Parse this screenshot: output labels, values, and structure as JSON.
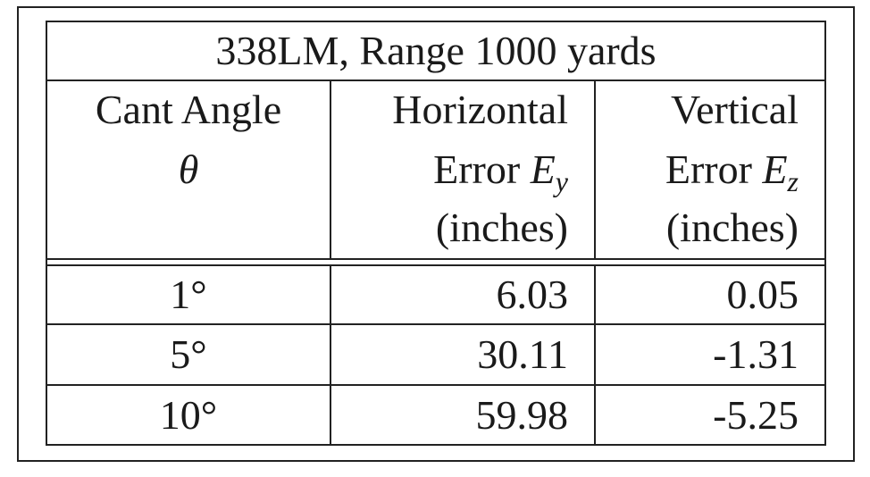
{
  "table": {
    "title": "338LM, Range 1000 yards",
    "align": [
      "center",
      "right",
      "right"
    ],
    "columns": [
      {
        "lines": [
          [
            {
              "text": "Cant Angle"
            }
          ],
          [
            {
              "text": "θ",
              "style": "italic"
            }
          ]
        ]
      },
      {
        "lines": [
          [
            {
              "text": "Horizontal"
            }
          ],
          [
            {
              "text": "Error "
            },
            {
              "text": "E",
              "style": "italic"
            },
            {
              "text": "y",
              "style": "italic-sub"
            }
          ],
          [
            {
              "text": "(inches)"
            }
          ]
        ]
      },
      {
        "lines": [
          [
            {
              "text": "Vertical"
            }
          ],
          [
            {
              "text": "Error "
            },
            {
              "text": "E",
              "style": "italic"
            },
            {
              "text": "z",
              "style": "italic-sub"
            }
          ],
          [
            {
              "text": "(inches)"
            }
          ]
        ]
      }
    ],
    "rows": [
      [
        "1°",
        "6.03",
        "0.05"
      ],
      [
        "5°",
        "30.11",
        "-1.31"
      ],
      [
        "10°",
        "59.98",
        "-5.25"
      ]
    ]
  }
}
